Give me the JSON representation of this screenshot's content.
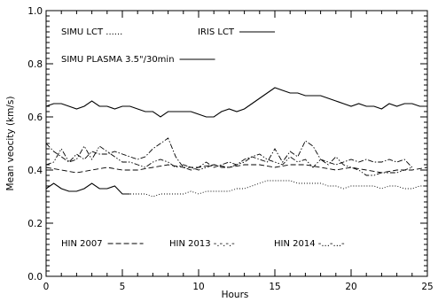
{
  "chart_data": {
    "type": "line",
    "xlabel": "Hours",
    "ylabel": "Mean veocity (km/s)",
    "xlim": [
      0,
      25
    ],
    "ylim": [
      0.0,
      1.0
    ],
    "xticks": [
      0,
      5,
      10,
      15,
      20,
      25
    ],
    "yticks": [
      0.0,
      0.2,
      0.4,
      0.6,
      0.8,
      1.0
    ],
    "grid": false,
    "series": [
      {
        "name": "IRIS LCT",
        "style": "solid",
        "x": [
          0,
          0.5,
          1,
          1.5,
          2,
          2.5,
          3,
          3.5,
          4,
          4.5,
          5,
          5.5,
          6,
          6.5,
          7,
          7.5,
          8,
          8.5,
          9,
          9.5,
          10,
          10.5,
          11,
          11.5,
          12,
          12.5,
          13,
          13.5,
          14,
          14.5,
          15,
          15.5,
          16,
          16.5,
          17,
          17.5,
          18,
          18.5,
          19,
          19.5,
          20,
          20.5,
          21,
          21.5,
          22,
          22.5,
          23,
          23.5,
          24,
          24.5,
          25
        ],
        "y": [
          0.64,
          0.65,
          0.65,
          0.64,
          0.63,
          0.64,
          0.66,
          0.64,
          0.64,
          0.63,
          0.64,
          0.64,
          0.63,
          0.62,
          0.62,
          0.6,
          0.62,
          0.62,
          0.62,
          0.62,
          0.61,
          0.6,
          0.6,
          0.62,
          0.63,
          0.62,
          0.63,
          0.65,
          0.67,
          0.69,
          0.71,
          0.7,
          0.69,
          0.69,
          0.68,
          0.68,
          0.68,
          0.67,
          0.66,
          0.65,
          0.64,
          0.65,
          0.64,
          0.64,
          0.63,
          0.65,
          0.64,
          0.65,
          0.65,
          0.64,
          0.64
        ]
      },
      {
        "name": "SIMU LCT",
        "style": "dotted",
        "x": [
          5,
          5.5,
          6,
          6.5,
          7,
          7.5,
          8,
          8.5,
          9,
          9.5,
          10,
          10.5,
          11,
          11.5,
          12,
          12.5,
          13,
          13.5,
          14,
          14.5,
          15,
          15.5,
          16,
          16.5,
          17,
          17.5,
          18,
          18.5,
          19,
          19.5,
          20,
          20.5,
          21,
          21.5,
          22,
          22.5,
          23,
          23.5,
          24,
          24.5,
          25
        ],
        "y": [
          0.31,
          0.31,
          0.31,
          0.31,
          0.3,
          0.31,
          0.31,
          0.31,
          0.31,
          0.32,
          0.31,
          0.32,
          0.32,
          0.32,
          0.32,
          0.33,
          0.33,
          0.34,
          0.35,
          0.36,
          0.36,
          0.36,
          0.36,
          0.35,
          0.35,
          0.35,
          0.35,
          0.34,
          0.34,
          0.33,
          0.34,
          0.34,
          0.34,
          0.34,
          0.33,
          0.34,
          0.34,
          0.33,
          0.33,
          0.34,
          0.34
        ]
      },
      {
        "name": "SIMU PLASMA 3.5\"/30min",
        "style": "solid",
        "x": [
          0,
          0.5,
          1,
          1.5,
          2,
          2.5,
          3,
          3.5,
          4,
          4.5,
          5,
          5.5
        ],
        "y": [
          0.33,
          0.35,
          0.33,
          0.32,
          0.32,
          0.33,
          0.35,
          0.33,
          0.33,
          0.34,
          0.31,
          0.31
        ]
      },
      {
        "name": "HIN 2007",
        "style": "dashed",
        "x": [
          0,
          1,
          2,
          3,
          4,
          5,
          6,
          7,
          8,
          9,
          10,
          11,
          12,
          13,
          14,
          15,
          16,
          17,
          18,
          19,
          20,
          21,
          22,
          23,
          24,
          25
        ],
        "y": [
          0.41,
          0.4,
          0.39,
          0.4,
          0.41,
          0.4,
          0.4,
          0.41,
          0.42,
          0.41,
          0.41,
          0.42,
          0.41,
          0.42,
          0.42,
          0.41,
          0.42,
          0.42,
          0.41,
          0.4,
          0.41,
          0.4,
          0.39,
          0.4,
          0.4,
          0.41
        ]
      },
      {
        "name": "HIN 2013",
        "style": "dashdot",
        "x": [
          0,
          0.5,
          1,
          1.5,
          2,
          2.5,
          3,
          3.5,
          4,
          4.5,
          5,
          5.5,
          6,
          6.5,
          7,
          7.5,
          8,
          8.5,
          9,
          9.5,
          10,
          10.5,
          11,
          11.5,
          12,
          12.5,
          13,
          13.5,
          14,
          14.5,
          15,
          15.5,
          16,
          16.5,
          17,
          17.5,
          18,
          18.5,
          19,
          19.5,
          20,
          20.5,
          21,
          21.5,
          22,
          22.5,
          23,
          23.5,
          24
        ],
        "y": [
          0.5,
          0.47,
          0.45,
          0.43,
          0.46,
          0.44,
          0.47,
          0.46,
          0.46,
          0.47,
          0.46,
          0.45,
          0.44,
          0.45,
          0.48,
          0.5,
          0.52,
          0.45,
          0.41,
          0.4,
          0.41,
          0.43,
          0.41,
          0.42,
          0.43,
          0.42,
          0.44,
          0.45,
          0.44,
          0.43,
          0.48,
          0.43,
          0.47,
          0.45,
          0.51,
          0.49,
          0.44,
          0.43,
          0.42,
          0.43,
          0.44,
          0.43,
          0.44,
          0.43,
          0.43,
          0.44,
          0.43,
          0.44,
          0.41
        ]
      },
      {
        "name": "HIN 2014",
        "style": "dashdotdot",
        "x": [
          0,
          0.5,
          1,
          1.5,
          2,
          2.5,
          3,
          3.5,
          4,
          4.5,
          5,
          5.5,
          6,
          6.5,
          7,
          7.5,
          8,
          8.5,
          9,
          9.5,
          10,
          10.5,
          11,
          11.5,
          12,
          12.5,
          13,
          13.5,
          14,
          14.5,
          15,
          15.5,
          16,
          16.5,
          17,
          17.5,
          18,
          18.5,
          19,
          19.5,
          20,
          20.5,
          21,
          21.5,
          22,
          22.5,
          23,
          23.5,
          24
        ],
        "y": [
          0.42,
          0.43,
          0.48,
          0.43,
          0.44,
          0.49,
          0.44,
          0.49,
          0.47,
          0.45,
          0.43,
          0.43,
          0.42,
          0.41,
          0.43,
          0.44,
          0.43,
          0.41,
          0.42,
          0.41,
          0.4,
          0.41,
          0.42,
          0.41,
          0.41,
          0.42,
          0.43,
          0.45,
          0.46,
          0.44,
          0.43,
          0.42,
          0.45,
          0.43,
          0.44,
          0.41,
          0.44,
          0.42,
          0.45,
          0.42,
          0.41,
          0.4,
          0.38,
          0.38,
          0.39,
          0.39,
          0.39,
          0.4,
          0.41
        ]
      }
    ],
    "legend_entries": [
      {
        "key": "simu_lct",
        "label": "SIMU LCT ......",
        "sample": "none"
      },
      {
        "key": "iris_lct",
        "label": "IRIS LCT",
        "sample": "solid"
      },
      {
        "key": "simu_plasma",
        "label": "SIMU PLASMA 3.5\"/30min",
        "sample": "solid"
      },
      {
        "key": "hin_2007",
        "label": "HIN 2007",
        "sample": "dashed"
      },
      {
        "key": "hin_2013",
        "label": "HIN 2013 -.-.-.-",
        "sample": "none"
      },
      {
        "key": "hin_2014",
        "label": "HIN 2014 -...-...-",
        "sample": "none"
      }
    ]
  }
}
